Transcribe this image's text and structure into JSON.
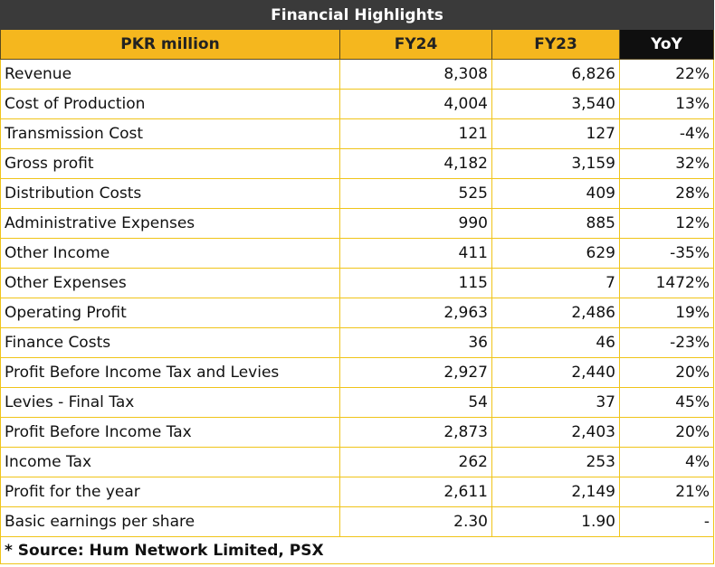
{
  "title": "Financial Highlights",
  "headers": {
    "label": "PKR million",
    "fy24": "FY24",
    "fy23": "FY23",
    "yoy": "YoY"
  },
  "rows": [
    {
      "label": "Revenue",
      "fy24": "8,308",
      "fy23": "6,826",
      "yoy": "22%"
    },
    {
      "label": "Cost of Production",
      "fy24": "4,004",
      "fy23": "3,540",
      "yoy": "13%"
    },
    {
      "label": "Transmission Cost",
      "fy24": "121",
      "fy23": "127",
      "yoy": "-4%"
    },
    {
      "label": "Gross profit",
      "fy24": "4,182",
      "fy23": "3,159",
      "yoy": "32%"
    },
    {
      "label": "Distribution Costs",
      "fy24": "525",
      "fy23": "409",
      "yoy": "28%"
    },
    {
      "label": "Administrative Expenses",
      "fy24": "990",
      "fy23": "885",
      "yoy": "12%"
    },
    {
      "label": "Other Income",
      "fy24": "411",
      "fy23": "629",
      "yoy": "-35%"
    },
    {
      "label": "Other Expenses",
      "fy24": "115",
      "fy23": "7",
      "yoy": "1472%"
    },
    {
      "label": "Operating Profit",
      "fy24": "2,963",
      "fy23": "2,486",
      "yoy": "19%"
    },
    {
      "label": "Finance Costs",
      "fy24": "36",
      "fy23": "46",
      "yoy": "-23%"
    },
    {
      "label": "Profit Before Income Tax and Levies",
      "fy24": "2,927",
      "fy23": "2,440",
      "yoy": "20%"
    },
    {
      "label": "Levies - Final Tax",
      "fy24": "54",
      "fy23": "37",
      "yoy": "45%"
    },
    {
      "label": "Profit Before Income Tax",
      "fy24": "2,873",
      "fy23": "2,403",
      "yoy": "20%"
    },
    {
      "label": "Income Tax",
      "fy24": "262",
      "fy23": "253",
      "yoy": "4%"
    },
    {
      "label": "Profit for the year",
      "fy24": "2,611",
      "fy23": "2,149",
      "yoy": "21%"
    },
    {
      "label": "Basic earnings per share",
      "fy24": "2.30",
      "fy23": "1.90",
      "yoy": "-"
    }
  ],
  "source": "* Source: Hum Network Limited, PSX",
  "colors": {
    "title_bg": "#3a3a3a",
    "header_bg": "#f5b71e",
    "yoy_header_bg": "#0f0f0f",
    "border": "#f0c419"
  }
}
